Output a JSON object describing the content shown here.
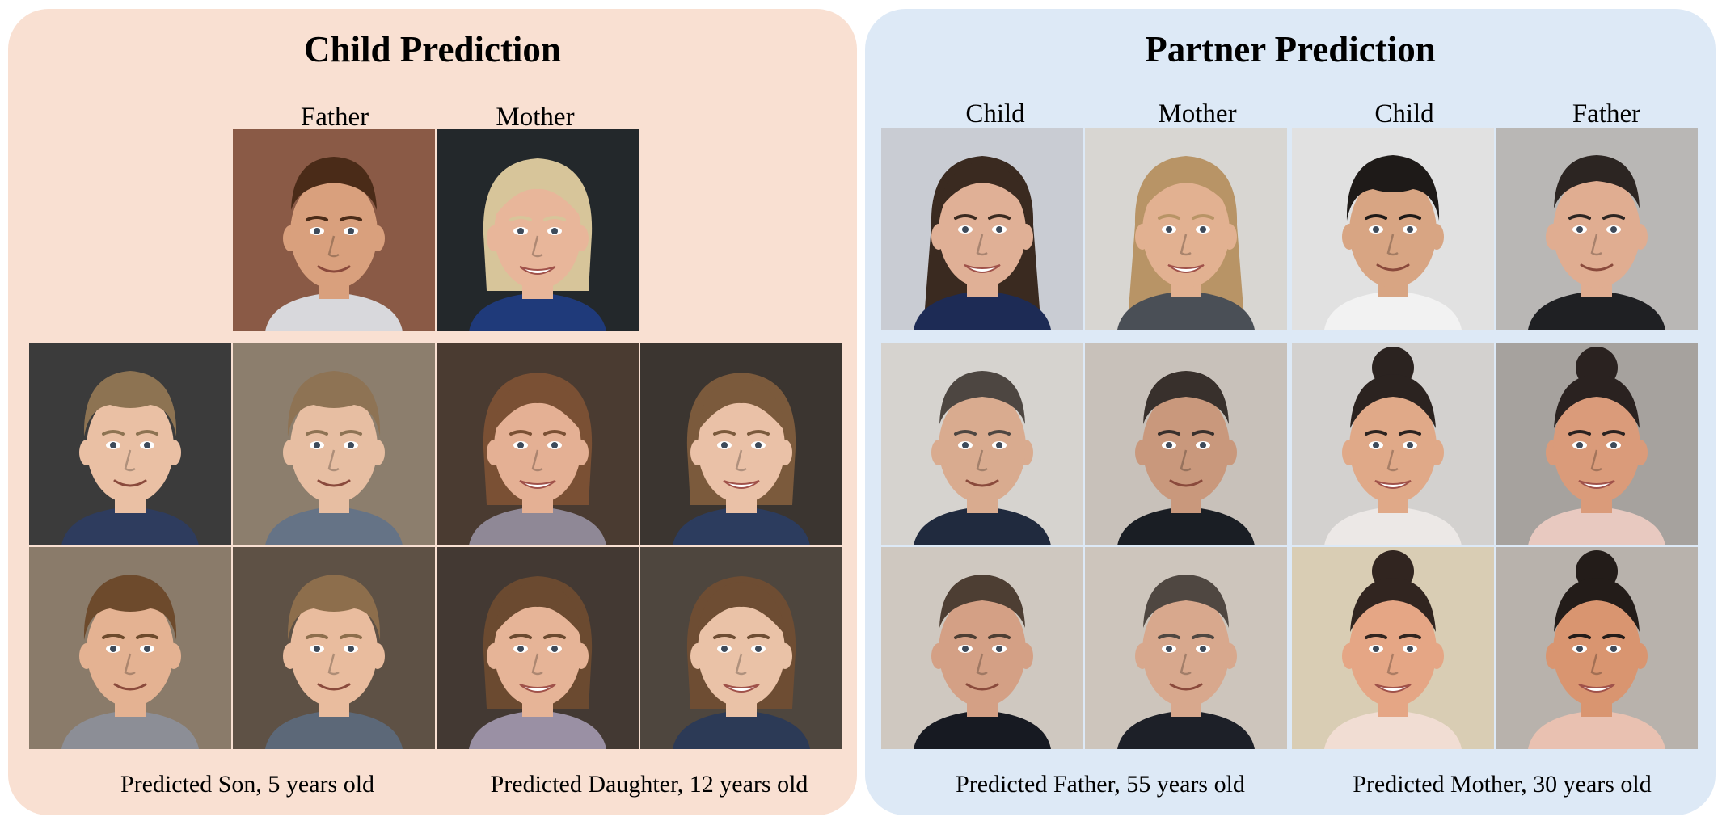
{
  "colors": {
    "left_panel_bg": "#f9e0d2",
    "right_panel_bg": "#dde9f6"
  },
  "child_prediction": {
    "title": "Child Prediction",
    "parent_labels": [
      "Father",
      "Mother"
    ],
    "captions": [
      "Predicted Son, 5 years old",
      "Predicted Daughter, 12 years old"
    ],
    "parents": [
      {
        "name": "father-photo",
        "bg": "#8a5a46",
        "skin": "#d9a07d",
        "hair": "#4a2b18",
        "shirt": "#d8d8dc",
        "hair_style": "short",
        "gender": "m"
      },
      {
        "name": "mother-photo",
        "bg": "#23282b",
        "skin": "#e8b69a",
        "hair": "#d7c59a",
        "shirt": "#1f3a7a",
        "hair_style": "bob",
        "gender": "f"
      }
    ],
    "grid": [
      {
        "name": "predicted-son-1",
        "bg": "#3b3b3b",
        "skin": "#eac0a4",
        "hair": "#8d7352",
        "shirt": "#2e3c5e",
        "hair_style": "boy",
        "gender": "m"
      },
      {
        "name": "predicted-son-2",
        "bg": "#8c7e6d",
        "skin": "#e7bea2",
        "hair": "#8e7354",
        "shirt": "#657386",
        "hair_style": "boy",
        "gender": "m"
      },
      {
        "name": "predicted-daughter-1",
        "bg": "#4a3b31",
        "skin": "#e4b094",
        "hair": "#7a5034",
        "shirt": "#8f8896",
        "hair_style": "bob",
        "gender": "f"
      },
      {
        "name": "predicted-daughter-2",
        "bg": "#3b3530",
        "skin": "#eac1a7",
        "hair": "#7b5a3c",
        "shirt": "#2c3c5e",
        "hair_style": "bob",
        "gender": "f"
      },
      {
        "name": "predicted-son-3",
        "bg": "#8a7b6a",
        "skin": "#e4b292",
        "hair": "#6d4a2c",
        "shirt": "#8c8e96",
        "hair_style": "boy",
        "gender": "m"
      },
      {
        "name": "predicted-son-4",
        "bg": "#5e5145",
        "skin": "#e9bc9e",
        "hair": "#8d6e4c",
        "shirt": "#5c6878",
        "hair_style": "boy",
        "gender": "m"
      },
      {
        "name": "predicted-daughter-3",
        "bg": "#433933",
        "skin": "#e6b497",
        "hair": "#6b4a30",
        "shirt": "#9a90a4",
        "hair_style": "bob",
        "gender": "f"
      },
      {
        "name": "predicted-daughter-4",
        "bg": "#4e463e",
        "skin": "#eac2a7",
        "hair": "#6e4d33",
        "shirt": "#2c3a56",
        "hair_style": "bob",
        "gender": "f"
      }
    ]
  },
  "partner_prediction": {
    "title": "Partner Prediction",
    "input_labels": [
      "Child",
      "Mother",
      "Child",
      "Father"
    ],
    "captions": [
      "Predicted Father, 55 years old",
      "Predicted Mother, 30 years old"
    ],
    "inputs": [
      {
        "name": "child-input-photo-1",
        "bg": "#c9ccd3",
        "skin": "#e0b096",
        "hair": "#3a2a20",
        "shirt": "#1d2b55",
        "hair_style": "long",
        "gender": "f"
      },
      {
        "name": "mother-input-photo",
        "bg": "#d8d6d2",
        "skin": "#e2b191",
        "hair": "#b89466",
        "shirt": "#4a4f56",
        "hair_style": "long",
        "gender": "f"
      },
      {
        "name": "child-input-photo-2",
        "bg": "#e1e1e1",
        "skin": "#d8a583",
        "hair": "#1e1a18",
        "shirt": "#f2f2f2",
        "hair_style": "boy",
        "gender": "m"
      },
      {
        "name": "father-input-photo",
        "bg": "#b9b7b5",
        "skin": "#e0ad91",
        "hair": "#2c2522",
        "shirt": "#1f2023",
        "hair_style": "short",
        "gender": "m"
      }
    ],
    "grid": [
      {
        "name": "predicted-father-1",
        "bg": "#d6d3cf",
        "skin": "#d9ab8f",
        "hair": "#4d4641",
        "shirt": "#202a3e",
        "hair_style": "short",
        "gender": "m"
      },
      {
        "name": "predicted-father-2",
        "bg": "#c8c1ba",
        "skin": "#c9987c",
        "hair": "#38302c",
        "shirt": "#1a1e24",
        "hair_style": "short",
        "gender": "m"
      },
      {
        "name": "predicted-mother-1",
        "bg": "#d3d1cf",
        "skin": "#e0a988",
        "hair": "#2b2320",
        "shirt": "#ece8e6",
        "hair_style": "bun",
        "gender": "f"
      },
      {
        "name": "predicted-mother-2",
        "bg": "#a6a29e",
        "skin": "#da9b7a",
        "hair": "#2a2220",
        "shirt": "#e8c9c0",
        "hair_style": "bun",
        "gender": "f"
      },
      {
        "name": "predicted-father-3",
        "bg": "#cfc8c0",
        "skin": "#d4a085",
        "hair": "#4d3e33",
        "shirt": "#171a22",
        "hair_style": "short",
        "gender": "m"
      },
      {
        "name": "predicted-father-4",
        "bg": "#cdc5bc",
        "skin": "#d8a88d",
        "hair": "#4f4741",
        "shirt": "#1d2028",
        "hair_style": "short",
        "gender": "m"
      },
      {
        "name": "predicted-mother-3",
        "bg": "#d9cdb4",
        "skin": "#e5a685",
        "hair": "#312520",
        "shirt": "#f1ddd3",
        "hair_style": "bun",
        "gender": "f"
      },
      {
        "name": "predicted-mother-4",
        "bg": "#b8b2ac",
        "skin": "#d99570",
        "hair": "#231c19",
        "shirt": "#e9c1b1",
        "hair_style": "bun",
        "gender": "f"
      }
    ]
  }
}
